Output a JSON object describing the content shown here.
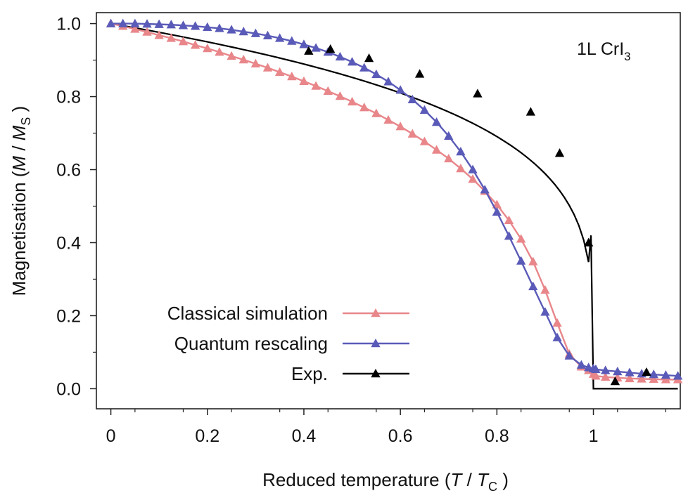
{
  "chart_data": {
    "type": "line",
    "annotation": "1L CrI",
    "annotation_subscript": "3",
    "xlabel": {
      "prefix": "Reduced temperature (",
      "var1": "T",
      "sep": " / ",
      "var2": "T",
      "sub": "C",
      "suffix": " )"
    },
    "ylabel": {
      "prefix": "Magnetisation (",
      "var1": "M",
      "sep": " / ",
      "var2": "M",
      "sub": "S",
      "suffix": " )"
    },
    "xlim": [
      -0.03,
      1.18
    ],
    "ylim": [
      -0.055,
      1.03
    ],
    "x_ticks": [
      {
        "value": 0,
        "label": "0"
      },
      {
        "value": 0.2,
        "label": "0.2"
      },
      {
        "value": 0.4,
        "label": "0.4"
      },
      {
        "value": 0.6,
        "label": "0.6"
      },
      {
        "value": 0.8,
        "label": "0.8"
      },
      {
        "value": 1.0,
        "label": "1"
      }
    ],
    "y_ticks": [
      {
        "value": 0.0,
        "label": "0.0"
      },
      {
        "value": 0.2,
        "label": "0.2"
      },
      {
        "value": 0.4,
        "label": "0.4"
      },
      {
        "value": 0.6,
        "label": "0.6"
      },
      {
        "value": 0.8,
        "label": "0.8"
      },
      {
        "value": 1.0,
        "label": "1.0"
      }
    ],
    "grid": false,
    "legend_position": "bottom-left",
    "series": [
      {
        "name": "Classical simulation",
        "color": "#e8868a",
        "marker": "triangle",
        "x": [
          0,
          0.025,
          0.05,
          0.075,
          0.1,
          0.125,
          0.15,
          0.175,
          0.2,
          0.225,
          0.25,
          0.275,
          0.3,
          0.325,
          0.35,
          0.375,
          0.4,
          0.425,
          0.45,
          0.475,
          0.5,
          0.525,
          0.55,
          0.575,
          0.6,
          0.625,
          0.65,
          0.675,
          0.7,
          0.725,
          0.75,
          0.775,
          0.8,
          0.825,
          0.85,
          0.875,
          0.9,
          0.925,
          0.95,
          0.975,
          0.99,
          1.0,
          1.005,
          1.025,
          1.05,
          1.075,
          1.1,
          1.125,
          1.15,
          1.175
        ],
        "y": [
          1.0,
          0.993,
          0.985,
          0.977,
          0.968,
          0.96,
          0.951,
          0.941,
          0.932,
          0.922,
          0.911,
          0.901,
          0.89,
          0.879,
          0.867,
          0.855,
          0.842,
          0.829,
          0.815,
          0.801,
          0.786,
          0.77,
          0.754,
          0.736,
          0.718,
          0.698,
          0.677,
          0.654,
          0.63,
          0.603,
          0.574,
          0.541,
          0.504,
          0.461,
          0.41,
          0.348,
          0.27,
          0.18,
          0.095,
          0.06,
          0.05,
          0.04,
          0.035,
          0.032,
          0.03,
          0.028,
          0.027,
          0.026,
          0.025,
          0.025
        ]
      },
      {
        "name": "Quantum rescaling",
        "color": "#5a5ab8",
        "marker": "triangle",
        "x": [
          0,
          0.025,
          0.05,
          0.075,
          0.1,
          0.125,
          0.15,
          0.175,
          0.2,
          0.225,
          0.25,
          0.275,
          0.3,
          0.325,
          0.35,
          0.375,
          0.4,
          0.425,
          0.45,
          0.475,
          0.5,
          0.525,
          0.55,
          0.575,
          0.6,
          0.625,
          0.65,
          0.675,
          0.7,
          0.725,
          0.75,
          0.775,
          0.8,
          0.825,
          0.85,
          0.875,
          0.9,
          0.925,
          0.95,
          0.975,
          0.99,
          1.0,
          1.005,
          1.025,
          1.05,
          1.075,
          1.1,
          1.125,
          1.15,
          1.175
        ],
        "y": [
          1.0,
          1.0,
          1.0,
          0.999,
          0.998,
          0.997,
          0.995,
          0.993,
          0.99,
          0.987,
          0.983,
          0.978,
          0.973,
          0.967,
          0.96,
          0.952,
          0.943,
          0.933,
          0.922,
          0.909,
          0.895,
          0.879,
          0.861,
          0.841,
          0.818,
          0.792,
          0.763,
          0.73,
          0.692,
          0.649,
          0.6,
          0.545,
          0.484,
          0.418,
          0.35,
          0.28,
          0.21,
          0.14,
          0.09,
          0.065,
          0.058,
          0.055,
          0.053,
          0.05,
          0.047,
          0.044,
          0.041,
          0.039,
          0.037,
          0.035
        ]
      },
      {
        "name": "Exp.",
        "color": "#000000",
        "marker": "triangle",
        "x": [
          0.41,
          0.455,
          0.535,
          0.64,
          0.76,
          0.87,
          0.93,
          0.99,
          1.045,
          1.11
        ],
        "y": [
          0.925,
          0.93,
          0.905,
          0.862,
          0.808,
          0.758,
          0.645,
          0.4,
          0.02,
          0.045
        ]
      }
    ]
  }
}
